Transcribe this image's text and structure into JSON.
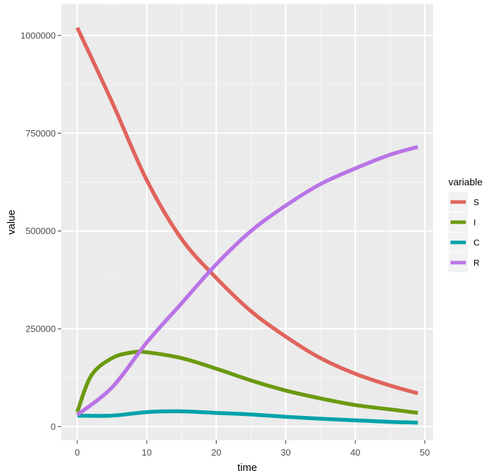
{
  "chart_data": {
    "type": "line",
    "xlabel": "time",
    "ylabel": "value",
    "xlim": [
      -2.3,
      51.2
    ],
    "ylim": [
      -35000,
      1080000
    ],
    "x_ticks": [
      0,
      10,
      20,
      30,
      40,
      50
    ],
    "y_ticks": [
      0,
      250000,
      500000,
      750000,
      1000000
    ],
    "x_tick_labels": [
      "0",
      "10",
      "20",
      "30",
      "40",
      "50"
    ],
    "y_tick_labels": [
      "0",
      "250000",
      "500000",
      "750000",
      "1000000"
    ],
    "grid": true,
    "legend": {
      "title": "variable",
      "position": "right"
    },
    "series": [
      {
        "name": "S",
        "color": "#e0645c",
        "x": [
          0,
          5,
          10,
          15,
          20,
          25,
          30,
          35,
          40,
          45,
          49
        ],
        "values": [
          1020000,
          830000,
          630000,
          480000,
          380000,
          295000,
          230000,
          175000,
          135000,
          105000,
          85000
        ]
      },
      {
        "name": "I",
        "color": "#6b9a10",
        "x": [
          0,
          2,
          5,
          8,
          10,
          15,
          20,
          25,
          30,
          35,
          40,
          45,
          49
        ],
        "values": [
          37000,
          130000,
          175000,
          190000,
          190000,
          175000,
          148000,
          118000,
          92000,
          72000,
          55000,
          44000,
          35000
        ]
      },
      {
        "name": "C",
        "color": "#00a3aa",
        "x": [
          0,
          5,
          10,
          15,
          20,
          25,
          30,
          35,
          40,
          45,
          49
        ],
        "values": [
          28000,
          28000,
          37000,
          39000,
          35000,
          31000,
          25000,
          20000,
          16000,
          12000,
          10000
        ]
      },
      {
        "name": "R",
        "color": "#b974e6",
        "x": [
          0,
          5,
          10,
          15,
          20,
          25,
          30,
          35,
          40,
          45,
          49
        ],
        "values": [
          30000,
          100000,
          215000,
          315000,
          415000,
          500000,
          565000,
          620000,
          660000,
          695000,
          715000
        ]
      }
    ]
  }
}
